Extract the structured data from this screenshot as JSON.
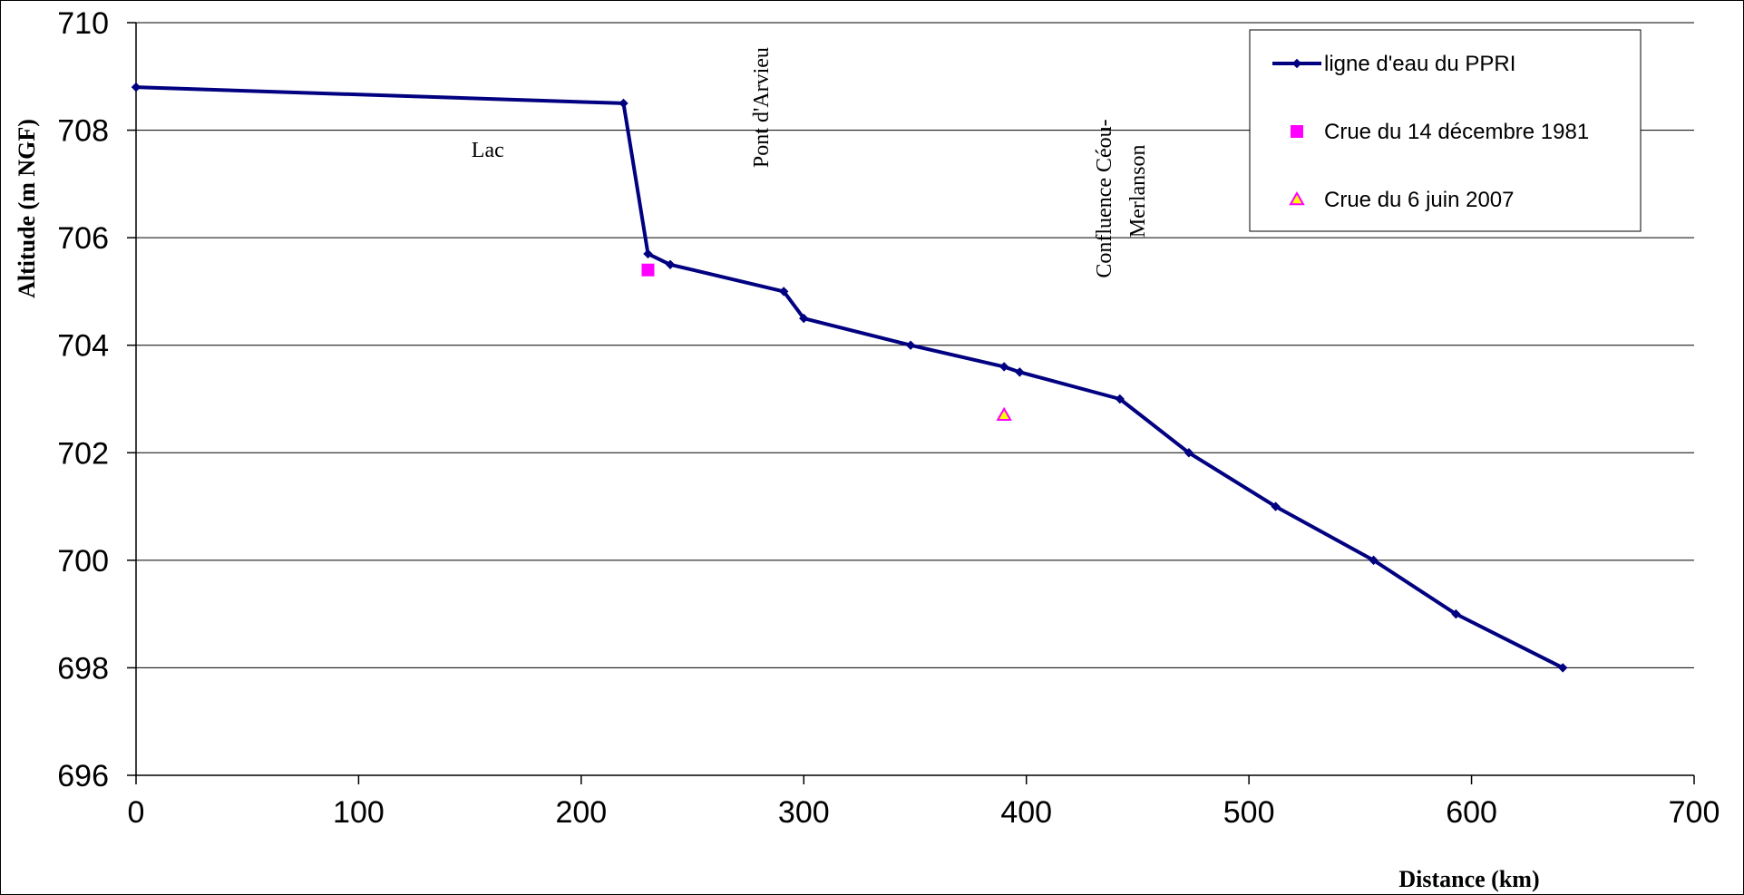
{
  "chart_data": {
    "type": "line",
    "title": "",
    "xlabel": "Distance (km)",
    "ylabel": "Altitude (m NGF)",
    "xlim": [
      0,
      700
    ],
    "ylim": [
      696,
      710
    ],
    "x_ticks": [
      0,
      100,
      200,
      300,
      400,
      500,
      600,
      700
    ],
    "y_ticks": [
      696,
      698,
      700,
      702,
      704,
      706,
      708,
      710
    ],
    "grid": {
      "horizontal": true,
      "vertical": false
    },
    "legend_position": "top-right",
    "series": [
      {
        "name": "ligne d'eau du PPRI",
        "marker": "diamond",
        "color": "#000080",
        "points": [
          {
            "x": 0,
            "y": 708.8
          },
          {
            "x": 219,
            "y": 708.5
          },
          {
            "x": 230,
            "y": 705.7
          },
          {
            "x": 240,
            "y": 705.5
          },
          {
            "x": 291,
            "y": 705.0
          },
          {
            "x": 300,
            "y": 704.5
          },
          {
            "x": 348,
            "y": 704.0
          },
          {
            "x": 390,
            "y": 703.6
          },
          {
            "x": 397,
            "y": 703.5
          },
          {
            "x": 442,
            "y": 703.0
          },
          {
            "x": 473,
            "y": 702.0
          },
          {
            "x": 512,
            "y": 701.0
          },
          {
            "x": 556,
            "y": 700.0
          },
          {
            "x": 593,
            "y": 699.0
          },
          {
            "x": 641,
            "y": 698.0
          }
        ]
      },
      {
        "name": "Crue du 14 décembre 1981",
        "marker": "square",
        "color": "#ff00ff",
        "points": [
          {
            "x": 230,
            "y": 705.4
          }
        ]
      },
      {
        "name": "Crue du 6 juin 2007",
        "marker": "triangle",
        "color": "#ff00ff",
        "points": [
          {
            "x": 390,
            "y": 702.7
          }
        ]
      }
    ],
    "annotations": [
      {
        "id": "lac",
        "text": "Lac",
        "x": 158,
        "y": 707.5,
        "rotation": 0
      },
      {
        "id": "pont-darvieu",
        "text": "Pont d'Arvieu",
        "x": 284,
        "y": 707.3,
        "rotation": -90
      },
      {
        "id": "confluence-1",
        "text": "Confluence Céou-",
        "x": 438,
        "y": 705.25,
        "rotation": -90
      },
      {
        "id": "confluence-2",
        "text": "Merlanson",
        "x": 453,
        "y": 706.0,
        "rotation": -90
      }
    ]
  }
}
